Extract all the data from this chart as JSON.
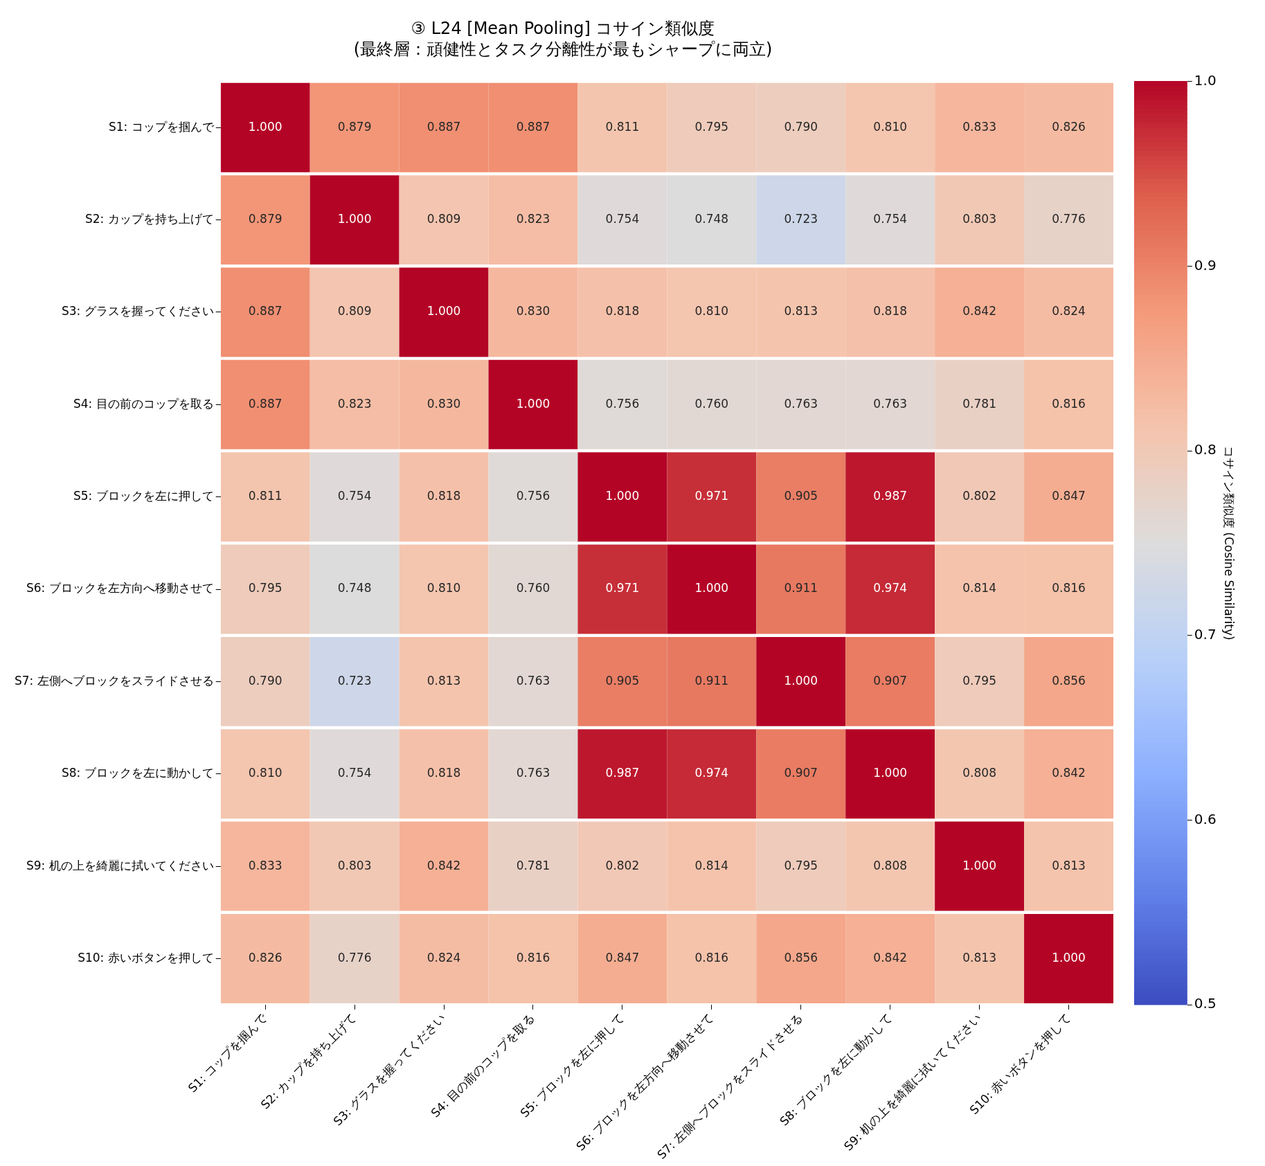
{
  "chart_data": {
    "type": "heatmap",
    "title": "③ L24 [Mean Pooling] コサイン類似度",
    "subtitle": "(最終層：頑健性とタスク分離性が最もシャープに両立)",
    "clabel": "コサイン類似度 (Cosine Similarity)",
    "categories": [
      "S1: コップを掴んで",
      "S2: カップを持ち上げて",
      "S3: グラスを握ってください",
      "S4: 目の前のコップを取る",
      "S5: ブロックを左に押して",
      "S6: ブロックを左方向へ移動させて",
      "S7: 左側へブロックをスライドさせる",
      "S8: ブロックを左に動かして",
      "S9: 机の上を綺麗に拭いてください",
      "S10: 赤いボタンを押して"
    ],
    "y_categories": [
      "S1: コップを掴んで",
      "S2: カップを持ち上げて",
      "S3: グラスを握ってください",
      "S4: 目の前のコップを取る",
      "S5: ブロックを左に押して",
      "S6: ブロックを左方向へ移動させて",
      "S7: 左側へブロックをスライドさせる",
      "S8: ブロックを左に動かして",
      "S9: 机の上を綺麗に拭いてください",
      "S10: 赤いボタンを押して"
    ],
    "cells": [
      [
        1,
        0.879,
        0.887,
        0.887,
        0.811,
        0.795,
        0.79,
        0.81,
        0.833,
        0.826
      ],
      [
        0.879,
        1,
        0.809,
        0.823,
        0.754,
        0.748,
        0.723,
        0.754,
        0.803,
        0.776
      ],
      [
        0.887,
        0.809,
        1,
        0.83,
        0.818,
        0.81,
        0.813,
        0.818,
        0.842,
        0.824
      ],
      [
        0.887,
        0.823,
        0.83,
        1,
        0.756,
        0.76,
        0.763,
        0.763,
        0.781,
        0.816
      ],
      [
        0.811,
        0.754,
        0.818,
        0.756,
        1,
        0.971,
        0.905,
        0.987,
        0.802,
        0.847
      ],
      [
        0.795,
        0.748,
        0.81,
        0.76,
        0.971,
        1,
        0.911,
        0.974,
        0.814,
        0.816
      ],
      [
        0.79,
        0.723,
        0.813,
        0.763,
        0.905,
        0.911,
        1,
        0.907,
        0.795,
        0.856
      ],
      [
        0.81,
        0.754,
        0.818,
        0.763,
        0.987,
        0.974,
        0.907,
        1,
        0.808,
        0.842
      ],
      [
        0.833,
        0.803,
        0.842,
        0.781,
        0.802,
        0.814,
        0.795,
        0.808,
        1,
        0.813
      ],
      [
        0.826,
        0.776,
        0.824,
        0.816,
        0.847,
        0.816,
        0.856,
        0.842,
        0.813,
        1
      ]
    ],
    "cell_labels": [
      [
        "1.000",
        "0.879",
        "0.887",
        "0.887",
        "0.811",
        "0.795",
        "0.790",
        "0.810",
        "0.833",
        "0.826"
      ],
      [
        "0.879",
        "1.000",
        "0.809",
        "0.823",
        "0.754",
        "0.748",
        "0.723",
        "0.754",
        "0.803",
        "0.776"
      ],
      [
        "0.887",
        "0.809",
        "1.000",
        "0.830",
        "0.818",
        "0.810",
        "0.813",
        "0.818",
        "0.842",
        "0.824"
      ],
      [
        "0.887",
        "0.823",
        "0.830",
        "1.000",
        "0.756",
        "0.760",
        "0.763",
        "0.763",
        "0.781",
        "0.816"
      ],
      [
        "0.811",
        "0.754",
        "0.818",
        "0.756",
        "1.000",
        "0.971",
        "0.905",
        "0.987",
        "0.802",
        "0.847"
      ],
      [
        "0.795",
        "0.748",
        "0.810",
        "0.760",
        "0.971",
        "1.000",
        "0.911",
        "0.974",
        "0.814",
        "0.816"
      ],
      [
        "0.790",
        "0.723",
        "0.813",
        "0.763",
        "0.905",
        "0.911",
        "1.000",
        "0.907",
        "0.795",
        "0.856"
      ],
      [
        "0.810",
        "0.754",
        "0.818",
        "0.763",
        "0.987",
        "0.974",
        "0.907",
        "1.000",
        "0.808",
        "0.842"
      ],
      [
        "0.833",
        "0.803",
        "0.842",
        "0.781",
        "0.802",
        "0.814",
        "0.795",
        "0.808",
        "1.000",
        "0.813"
      ],
      [
        "0.826",
        "0.776",
        "0.824",
        "0.816",
        "0.847",
        "0.816",
        "0.856",
        "0.842",
        "0.813",
        "1.000"
      ]
    ],
    "clim": [
      0.5,
      1
    ],
    "cticks": [
      0.5,
      0.6,
      0.7,
      0.8,
      0.9,
      {
        "value": 1,
        "label": "1.0"
      }
    ]
  }
}
